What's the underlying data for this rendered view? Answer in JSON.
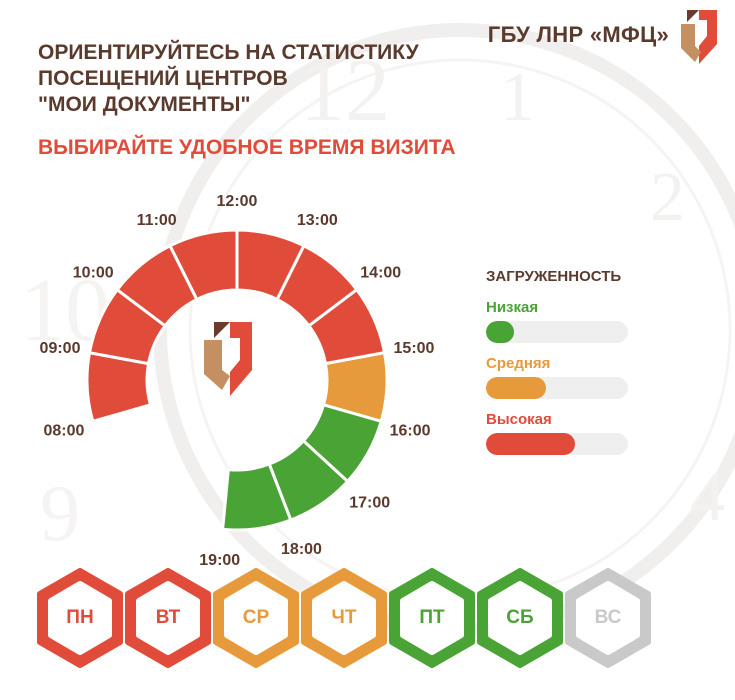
{
  "brand": {
    "name": "ГБУ ЛНР «МФЦ»",
    "logo_icon": "mfc-logo-icon"
  },
  "headline": "ОРИЕНТИРУЙТЕСЬ НА СТАТИСТИКУ\nПОСЕЩЕНИЙ ЦЕНТРОВ\n\"МОИ ДОКУМЕНТЫ\"",
  "subheadline": "ВЫБИРАЙТЕ УДОБНОЕ ВРЕМЯ ВИЗИТА",
  "colors": {
    "high": "#e04b3a",
    "medium": "#e69a3b",
    "low": "#4aa335",
    "inactive": "#c9c9c9",
    "text": "#5b3a2e"
  },
  "hours": [
    {
      "from": "08:00",
      "load": "high"
    },
    {
      "from": "09:00",
      "load": "high"
    },
    {
      "from": "10:00",
      "load": "high"
    },
    {
      "from": "11:00",
      "load": "high"
    },
    {
      "from": "12:00",
      "load": "high"
    },
    {
      "from": "13:00",
      "load": "high"
    },
    {
      "from": "14:00",
      "load": "high"
    },
    {
      "from": "15:00",
      "load": "medium"
    },
    {
      "from": "16:00",
      "load": "low"
    },
    {
      "from": "17:00",
      "load": "low"
    },
    {
      "from": "18:00",
      "load": "low"
    }
  ],
  "time_labels": [
    "08:00",
    "09:00",
    "10:00",
    "11:00",
    "12:00",
    "13:00",
    "14:00",
    "15:00",
    "16:00",
    "17:00",
    "18:00",
    "19:00"
  ],
  "legend": {
    "title": "ЗАГРУЖЕННОСТЬ",
    "items": [
      {
        "label": "Низкая",
        "level": "low",
        "fill": 0.2
      },
      {
        "label": "Средняя",
        "level": "medium",
        "fill": 0.42
      },
      {
        "label": "Высокая",
        "level": "high",
        "fill": 0.63
      }
    ]
  },
  "days": [
    {
      "label": "ПН",
      "load": "high"
    },
    {
      "label": "ВТ",
      "load": "high"
    },
    {
      "label": "СР",
      "load": "medium"
    },
    {
      "label": "ЧТ",
      "load": "medium"
    },
    {
      "label": "ПТ",
      "load": "low"
    },
    {
      "label": "СБ",
      "load": "low"
    },
    {
      "label": "ВС",
      "load": "inactive"
    }
  ]
}
